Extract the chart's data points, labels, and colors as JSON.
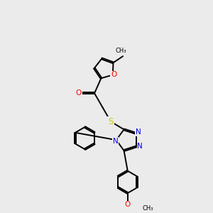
{
  "background_color": "#ebebeb",
  "bond_color": "#000000",
  "atom_colors": {
    "O": "#ff0000",
    "N": "#0000ee",
    "S": "#cccc00",
    "C": "#000000"
  },
  "line_width": 1.4,
  "fig_size": [
    3.0,
    3.0
  ],
  "dpi": 100
}
